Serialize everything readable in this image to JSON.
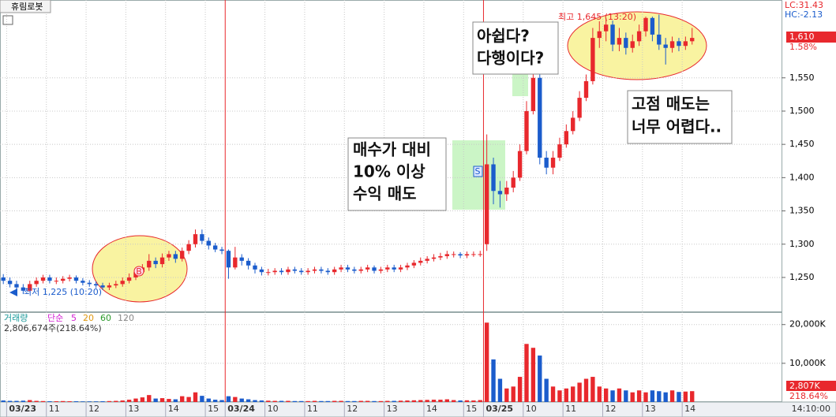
{
  "chart_data": [
    {
      "type": "candlestick",
      "title": "휴림로봇",
      "categories": [
        null,
        "03/23",
        null,
        null,
        null,
        null,
        null,
        "11",
        null,
        null,
        null,
        null,
        null,
        "12",
        null,
        null,
        null,
        null,
        null,
        "13",
        null,
        null,
        null,
        null,
        null,
        "14",
        null,
        null,
        null,
        null,
        null,
        "15",
        null,
        null,
        "03/24",
        null,
        null,
        null,
        null,
        null,
        "10",
        null,
        null,
        null,
        null,
        null,
        "11",
        null,
        null,
        null,
        null,
        null,
        "12",
        null,
        null,
        null,
        null,
        null,
        "13",
        null,
        null,
        null,
        null,
        null,
        "14",
        null,
        null,
        null,
        null,
        null,
        "15",
        null,
        null,
        "03/25",
        null,
        null,
        null,
        null,
        null,
        "10",
        null,
        null,
        null,
        null,
        null,
        "11",
        null,
        null,
        null,
        null,
        null,
        "12",
        null,
        null,
        null,
        null,
        null,
        "13",
        null,
        null,
        null,
        null,
        null,
        "14",
        null,
        null,
        null,
        null,
        null,
        null,
        null,
        null,
        null,
        null,
        null,
        null,
        null,
        null
      ],
      "open": [
        1250,
        1245,
        1240,
        1235,
        1230,
        1240,
        1245,
        1250,
        1245,
        1245,
        1248,
        1250,
        1245,
        1242,
        1240,
        1238,
        1235,
        1238,
        1240,
        1245,
        1250,
        1258,
        1265,
        1275,
        1270,
        1280,
        1285,
        1278,
        1290,
        1300,
        1315,
        1305,
        1298,
        1292,
        1290,
        1265,
        1280,
        1275,
        1268,
        1262,
        1258,
        1258,
        1260,
        1258,
        1262,
        1260,
        1258,
        1260,
        1262,
        1260,
        1258,
        1262,
        1265,
        1262,
        1260,
        1262,
        1265,
        1260,
        1262,
        1265,
        1262,
        1265,
        1268,
        1272,
        1275,
        1278,
        1280,
        1282,
        1285,
        1285,
        1283,
        1285,
        1285,
        1300,
        1420,
        1380,
        1375,
        1385,
        1400,
        1440,
        1500,
        1550,
        1430,
        1415,
        1430,
        1450,
        1470,
        1490,
        1520,
        1545,
        1610,
        1620,
        1630,
        1600,
        1610,
        1595,
        1605,
        1620,
        1640,
        1615,
        1600,
        1595,
        1605,
        1598,
        1605,
        null,
        null,
        null,
        null,
        null,
        null,
        null,
        null,
        null,
        null,
        null,
        null,
        null
      ],
      "high": [
        1255,
        1250,
        1245,
        1240,
        1245,
        1250,
        1254,
        1254,
        1250,
        1252,
        1254,
        1253,
        1249,
        1246,
        1244,
        1242,
        1242,
        1245,
        1250,
        1256,
        1263,
        1270,
        1285,
        1280,
        1286,
        1290,
        1290,
        1295,
        1306,
        1322,
        1322,
        1310,
        1302,
        1296,
        1292,
        1296,
        1285,
        1279,
        1272,
        1266,
        1263,
        1264,
        1264,
        1266,
        1266,
        1264,
        1264,
        1266,
        1266,
        1264,
        1266,
        1269,
        1269,
        1266,
        1266,
        1269,
        1268,
        1266,
        1269,
        1269,
        1269,
        1272,
        1276,
        1280,
        1282,
        1285,
        1287,
        1290,
        1289,
        1288,
        1289,
        1289,
        1290,
        1465,
        1430,
        1395,
        1395,
        1410,
        1450,
        1515,
        1570,
        1555,
        1440,
        1440,
        1460,
        1480,
        1500,
        1530,
        1555,
        1625,
        1635,
        1640,
        1636,
        1625,
        1618,
        1615,
        1630,
        1642,
        1642,
        1645,
        1610,
        1612,
        1610,
        1612,
        1625,
        null,
        null,
        null,
        null,
        null,
        null,
        null,
        null,
        null,
        null,
        null,
        null,
        null
      ],
      "low": [
        1240,
        1235,
        1230,
        1225,
        1228,
        1236,
        1241,
        1241,
        1240,
        1241,
        1244,
        1241,
        1238,
        1236,
        1234,
        1231,
        1231,
        1234,
        1236,
        1241,
        1246,
        1254,
        1260,
        1264,
        1265,
        1275,
        1272,
        1274,
        1285,
        1295,
        1300,
        1292,
        1288,
        1285,
        1248,
        1262,
        1268,
        1262,
        1256,
        1253,
        1253,
        1254,
        1254,
        1254,
        1256,
        1254,
        1254,
        1256,
        1256,
        1254,
        1254,
        1258,
        1258,
        1256,
        1256,
        1258,
        1256,
        1256,
        1258,
        1258,
        1258,
        1261,
        1264,
        1268,
        1271,
        1274,
        1276,
        1278,
        1280,
        1279,
        1279,
        1281,
        1281,
        1290,
        1360,
        1355,
        1365,
        1378,
        1395,
        1435,
        1495,
        1420,
        1405,
        1405,
        1425,
        1445,
        1465,
        1485,
        1515,
        1540,
        1595,
        1605,
        1590,
        1590,
        1585,
        1588,
        1598,
        1612,
        1605,
        1592,
        1570,
        1588,
        1590,
        1592,
        1600,
        null,
        null,
        null,
        null,
        null,
        null,
        null,
        null,
        null,
        null,
        null,
        null,
        null
      ],
      "close": [
        1245,
        1240,
        1235,
        1230,
        1240,
        1245,
        1250,
        1245,
        1245,
        1248,
        1250,
        1245,
        1242,
        1240,
        1238,
        1235,
        1238,
        1240,
        1245,
        1250,
        1258,
        1265,
        1275,
        1270,
        1280,
        1285,
        1278,
        1290,
        1300,
        1315,
        1305,
        1298,
        1292,
        1290,
        1265,
        1280,
        1275,
        1268,
        1262,
        1258,
        1258,
        1260,
        1258,
        1262,
        1260,
        1258,
        1260,
        1262,
        1260,
        1258,
        1262,
        1265,
        1262,
        1260,
        1262,
        1265,
        1260,
        1262,
        1265,
        1262,
        1265,
        1268,
        1272,
        1275,
        1278,
        1280,
        1282,
        1285,
        1285,
        1283,
        1285,
        1285,
        1285,
        1420,
        1380,
        1375,
        1385,
        1400,
        1440,
        1500,
        1550,
        1430,
        1415,
        1430,
        1450,
        1470,
        1490,
        1520,
        1545,
        1610,
        1620,
        1630,
        1600,
        1610,
        1595,
        1605,
        1620,
        1640,
        1615,
        1600,
        1595,
        1605,
        1598,
        1605,
        1610,
        null,
        null,
        null,
        null,
        null,
        null,
        null,
        null,
        null,
        null,
        null,
        null,
        null
      ],
      "up_color": "#e8282d",
      "down_color": "#1b5ccc",
      "ylim": [
        1199,
        1667
      ],
      "yticks": [
        {
          "value": 1250,
          "label": "1,250"
        },
        {
          "value": 1300,
          "label": "1,300"
        },
        {
          "value": 1350,
          "label": "1,350"
        },
        {
          "value": 1400,
          "label": "1,400"
        },
        {
          "value": 1450,
          "label": "1,450"
        },
        {
          "value": 1500,
          "label": "1,500"
        },
        {
          "value": 1550,
          "label": "1,550"
        }
      ],
      "grid": true,
      "stats": [
        {
          "text": "LC:31.43",
          "color": "#e8282d"
        },
        {
          "text": "HC:-2.13",
          "color": "#1b5ccc"
        }
      ],
      "current_price": "1,610",
      "change": "1.58%",
      "high_note": "최고 1,645 (13:20)",
      "low_note": "최저 1,225 (10:20)",
      "signals": [
        "B",
        "S"
      ],
      "callouts": [
        [
          "아쉽다?",
          "다행이다?"
        ],
        [
          "매수가 대비",
          "10% 이상",
          "수익 매도"
        ],
        [
          "고점 매도는",
          "너무 어렵다.."
        ]
      ],
      "time": "14:10:00"
    },
    {
      "type": "bar",
      "title": "거래량",
      "ma_label": "단순",
      "ma": [
        {
          "name": "5",
          "color": "#d21fd2"
        },
        {
          "name": "20",
          "color": "#e09a10"
        },
        {
          "name": "60",
          "color": "#2a9a2a"
        },
        {
          "name": "120",
          "color": "#888888"
        }
      ],
      "summary": "2,806,674주(218.64%)",
      "values": [
        400,
        300,
        300,
        350,
        500,
        300,
        250,
        200,
        200,
        250,
        200,
        200,
        150,
        150,
        150,
        200,
        250,
        300,
        400,
        600,
        900,
        1200,
        1800,
        900,
        1000,
        800,
        700,
        1500,
        1300,
        2500,
        1600,
        900,
        600,
        500,
        1500,
        1300,
        900,
        700,
        500,
        400,
        350,
        300,
        300,
        300,
        250,
        250,
        250,
        300,
        250,
        250,
        300,
        300,
        250,
        250,
        300,
        300,
        250,
        250,
        300,
        300,
        350,
        400,
        450,
        500,
        550,
        600,
        600,
        700,
        500,
        400,
        450,
        400,
        500,
        20500,
        11000,
        6000,
        3500,
        4000,
        6500,
        15000,
        14000,
        12000,
        6000,
        4000,
        3000,
        3500,
        4000,
        5000,
        6000,
        6500,
        4000,
        3500,
        3000,
        3500,
        3000,
        2500,
        3000,
        2500,
        3000,
        2800,
        2500,
        3000,
        2600,
        2700,
        2807,
        null,
        null,
        null,
        null,
        null,
        null,
        null,
        null,
        null,
        null,
        null,
        null,
        null
      ],
      "ylim": [
        0,
        23000
      ],
      "yticks": [
        {
          "value": 10000,
          "label": "10,000K"
        },
        {
          "value": 20000,
          "label": "20,000K"
        }
      ],
      "current_volume": "2,807K",
      "ratio": "218.64%"
    }
  ]
}
